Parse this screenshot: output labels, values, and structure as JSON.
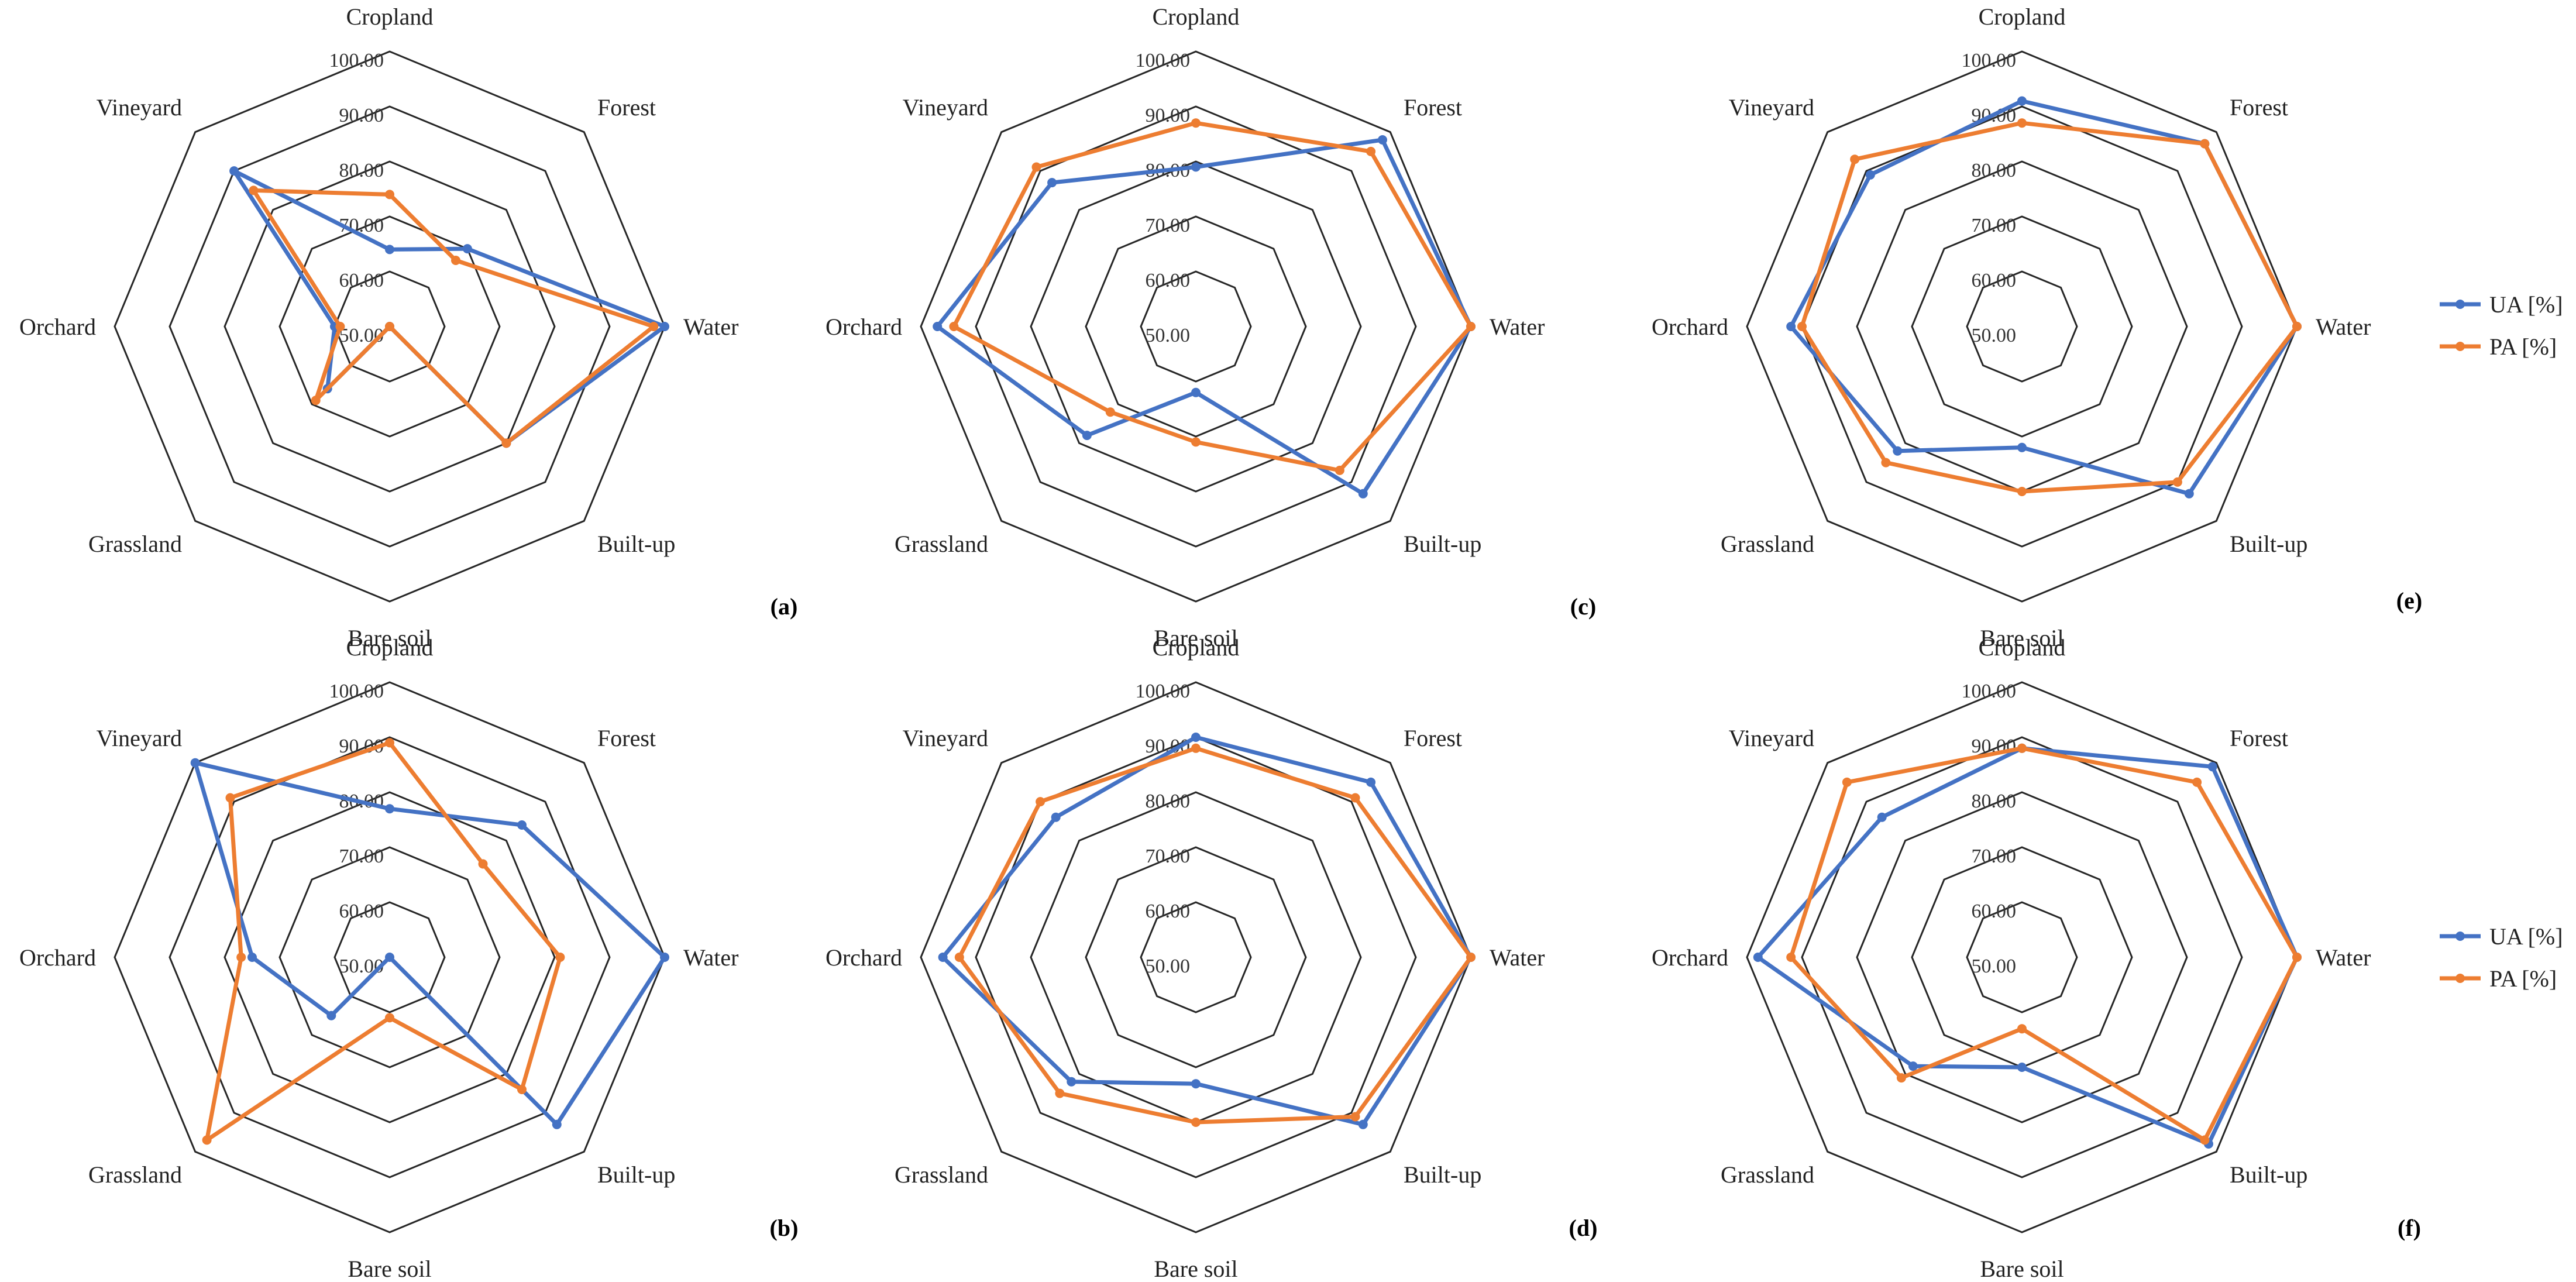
{
  "chart_data": [
    {
      "type": "radar",
      "panel": "(a)",
      "categories": [
        "Cropland",
        "Forest",
        "Water",
        "Built-up",
        "Bare soil",
        "Grassland",
        "Orchard",
        "Vineyard"
      ],
      "r_ticks": [
        "50.00",
        "60.00",
        "70.00",
        "80.00",
        "90.00",
        "100.00"
      ],
      "rlim": [
        50,
        100
      ],
      "series": [
        {
          "name": "UA [%]",
          "values": [
            64,
            70,
            100,
            80,
            50,
            66,
            60,
            90
          ]
        },
        {
          "name": "PA [%]",
          "values": [
            74,
            67,
            98,
            80,
            50,
            69,
            59,
            85
          ]
        }
      ]
    },
    {
      "type": "radar",
      "panel": "(b)",
      "categories": [
        "Cropland",
        "Forest",
        "Water",
        "Built-up",
        "Bare soil",
        "Grassland",
        "Orchard",
        "Vineyard"
      ],
      "r_ticks": [
        "50.00",
        "60.00",
        "70.00",
        "80.00",
        "90.00",
        "100.00"
      ],
      "rlim": [
        50,
        100
      ],
      "series": [
        {
          "name": "UA [%]",
          "values": [
            77,
            84,
            100,
            93,
            50,
            65,
            75,
            100
          ]
        },
        {
          "name": "PA [%]",
          "values": [
            89,
            74,
            81,
            84,
            61,
            97,
            77,
            91
          ]
        }
      ]
    },
    {
      "type": "radar",
      "panel": "(c)",
      "categories": [
        "Cropland",
        "Forest",
        "Water",
        "Built-up",
        "Bare soil",
        "Grassland",
        "Orchard",
        "Vineyard"
      ],
      "r_ticks": [
        "50.00",
        "60.00",
        "70.00",
        "80.00",
        "90.00",
        "100.00"
      ],
      "rlim": [
        50,
        100
      ],
      "series": [
        {
          "name": "UA [%]",
          "values": [
            79,
            98,
            100,
            93,
            62,
            78,
            97,
            87
          ]
        },
        {
          "name": "PA [%]",
          "values": [
            87,
            95,
            100,
            87,
            71,
            72,
            94,
            91
          ]
        }
      ]
    },
    {
      "type": "radar",
      "panel": "(d)",
      "categories": [
        "Cropland",
        "Forest",
        "Water",
        "Built-up",
        "Bare soil",
        "Grassland",
        "Orchard",
        "Vineyard"
      ],
      "r_ticks": [
        "50.00",
        "60.00",
        "70.00",
        "80.00",
        "90.00",
        "100.00"
      ],
      "rlim": [
        50,
        100
      ],
      "series": [
        {
          "name": "UA [%]",
          "values": [
            90,
            95,
            100,
            93,
            73,
            82,
            96,
            86
          ]
        },
        {
          "name": "PA [%]",
          "values": [
            88,
            91,
            100,
            91,
            80,
            85,
            93,
            90
          ]
        }
      ]
    },
    {
      "type": "radar",
      "panel": "(e)",
      "categories": [
        "Cropland",
        "Forest",
        "Water",
        "Built-up",
        "Bare soil",
        "Grassland",
        "Orchard",
        "Vineyard"
      ],
      "r_ticks": [
        "50.00",
        "60.00",
        "70.00",
        "80.00",
        "90.00",
        "100.00"
      ],
      "rlim": [
        50,
        100
      ],
      "series": [
        {
          "name": "UA [%]",
          "values": [
            91,
            97,
            100,
            93,
            72,
            82,
            92,
            89
          ]
        },
        {
          "name": "PA [%]",
          "values": [
            87,
            97,
            100,
            90,
            80,
            85,
            90,
            93
          ]
        }
      ]
    },
    {
      "type": "radar",
      "panel": "(f)",
      "categories": [
        "Cropland",
        "Forest",
        "Water",
        "Built-up",
        "Bare soil",
        "Grassland",
        "Orchard",
        "Vineyard"
      ],
      "r_ticks": [
        "50.00",
        "60.00",
        "70.00",
        "80.00",
        "90.00",
        "100.00"
      ],
      "rlim": [
        50,
        100
      ],
      "series": [
        {
          "name": "UA [%]",
          "values": [
            88,
            99,
            100,
            98,
            70,
            78,
            98,
            86
          ]
        },
        {
          "name": "PA [%]",
          "values": [
            88,
            95,
            100,
            97,
            63,
            81,
            92,
            95
          ]
        }
      ]
    }
  ],
  "legend": [
    {
      "label": "UA [%]",
      "color": "#4472C4"
    },
    {
      "label": "PA [%]",
      "color": "#ED7D31"
    }
  ]
}
